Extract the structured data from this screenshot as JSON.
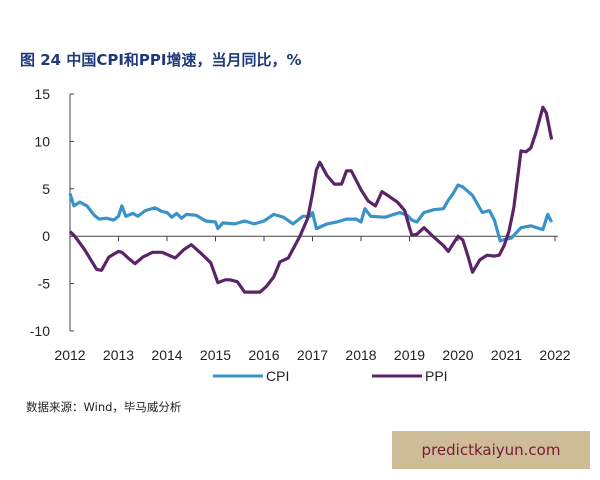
{
  "title": "图 24 中国CPI和PPI增速，当月同比，%",
  "source": "数据来源：Wind，毕马威分析",
  "watermark": "predictkaiyun.com",
  "chart_data": {
    "type": "line",
    "title": "图 24 中国CPI和PPI增速，当月同比，%",
    "xlabel": "",
    "ylabel": "",
    "xlim": [
      2012,
      2022
    ],
    "ylim": [
      -10,
      15
    ],
    "x_ticks": [
      "2012",
      "2013",
      "2014",
      "2015",
      "2016",
      "2017",
      "2018",
      "2019",
      "2020",
      "2021",
      "2022"
    ],
    "y_ticks": [
      "15",
      "10",
      "5",
      "0",
      "-5",
      "-10"
    ],
    "grid": false,
    "legend": "bottom",
    "series": [
      {
        "name": "CPI",
        "color": "#3a93c8",
        "x": [
          2012.0,
          2012.08,
          2012.2,
          2012.35,
          2012.5,
          2012.6,
          2012.75,
          2012.9,
          2013.0,
          2013.07,
          2013.15,
          2013.3,
          2013.4,
          2013.55,
          2013.75,
          2013.9,
          2014.0,
          2014.1,
          2014.2,
          2014.3,
          2014.4,
          2014.6,
          2014.8,
          2015.0,
          2015.05,
          2015.15,
          2015.4,
          2015.6,
          2015.8,
          2016.0,
          2016.2,
          2016.4,
          2016.6,
          2016.8,
          2016.95,
          2017.0,
          2017.08,
          2017.3,
          2017.5,
          2017.7,
          2017.9,
          2018.0,
          2018.08,
          2018.2,
          2018.5,
          2018.8,
          2018.95,
          2019.05,
          2019.15,
          2019.3,
          2019.5,
          2019.7,
          2019.8,
          2019.9,
          2020.0,
          2020.1,
          2020.3,
          2020.5,
          2020.65,
          2020.75,
          2020.87,
          2021.0,
          2021.1,
          2021.3,
          2021.5,
          2021.75,
          2021.85,
          2021.93
        ],
        "values": [
          4.5,
          3.2,
          3.6,
          3.2,
          2.2,
          1.8,
          1.9,
          1.7,
          2.1,
          3.2,
          2.1,
          2.4,
          2.1,
          2.7,
          3.0,
          2.6,
          2.5,
          2.0,
          2.4,
          1.9,
          2.3,
          2.2,
          1.6,
          1.5,
          0.8,
          1.4,
          1.3,
          1.6,
          1.3,
          1.6,
          2.3,
          2.0,
          1.3,
          2.1,
          2.1,
          2.5,
          0.8,
          1.3,
          1.5,
          1.8,
          1.8,
          1.5,
          2.9,
          2.1,
          2.0,
          2.5,
          2.2,
          1.7,
          1.5,
          2.5,
          2.8,
          2.9,
          3.8,
          4.5,
          5.4,
          5.2,
          4.3,
          2.5,
          2.7,
          1.7,
          -0.5,
          -0.3,
          -0.2,
          0.9,
          1.1,
          0.7,
          2.3,
          1.5
        ]
      },
      {
        "name": "PPI",
        "color": "#5b2468",
        "x": [
          2012.0,
          2012.1,
          2012.3,
          2012.55,
          2012.65,
          2012.8,
          2013.0,
          2013.07,
          2013.2,
          2013.34,
          2013.5,
          2013.7,
          2013.9,
          2014.17,
          2014.35,
          2014.5,
          2014.7,
          2014.9,
          2015.05,
          2015.2,
          2015.3,
          2015.45,
          2015.6,
          2015.92,
          2016.05,
          2016.2,
          2016.33,
          2016.5,
          2016.74,
          2016.9,
          2017.0,
          2017.08,
          2017.15,
          2017.3,
          2017.45,
          2017.6,
          2017.7,
          2017.8,
          2018.0,
          2018.15,
          2018.3,
          2018.43,
          2018.55,
          2018.75,
          2018.9,
          2019.0,
          2019.05,
          2019.15,
          2019.3,
          2019.5,
          2019.7,
          2019.8,
          2019.9,
          2020.0,
          2020.1,
          2020.2,
          2020.3,
          2020.45,
          2020.6,
          2020.75,
          2020.85,
          2020.95,
          2021.05,
          2021.15,
          2021.3,
          2021.4,
          2021.5,
          2021.6,
          2021.75,
          2021.82,
          2021.93
        ],
        "values": [
          0.5,
          0.0,
          -1.4,
          -3.5,
          -3.6,
          -2.2,
          -1.6,
          -1.7,
          -2.3,
          -2.9,
          -2.2,
          -1.7,
          -1.7,
          -2.3,
          -1.4,
          -0.9,
          -1.8,
          -2.8,
          -4.9,
          -4.6,
          -4.6,
          -4.8,
          -5.9,
          -5.9,
          -5.3,
          -4.3,
          -2.7,
          -2.3,
          0.0,
          1.9,
          4.5,
          7.0,
          7.8,
          6.4,
          5.5,
          5.5,
          6.9,
          6.9,
          4.9,
          3.7,
          3.2,
          4.7,
          4.3,
          3.6,
          2.7,
          0.9,
          0.1,
          0.2,
          0.9,
          -0.1,
          -1.0,
          -1.6,
          -0.8,
          0.0,
          -0.4,
          -2.0,
          -3.8,
          -2.5,
          -2.0,
          -2.1,
          -2.0,
          -1.0,
          0.5,
          3.0,
          9.0,
          8.9,
          9.3,
          10.8,
          13.6,
          13.0,
          10.2
        ]
      }
    ]
  }
}
